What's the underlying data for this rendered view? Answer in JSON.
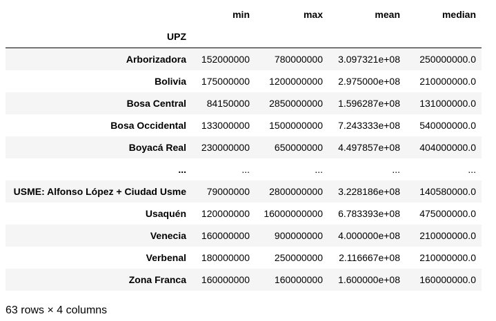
{
  "table": {
    "columns": [
      "min",
      "max",
      "mean",
      "median"
    ],
    "index_name": "UPZ",
    "rows": [
      {
        "name": "Arborizadora",
        "values": [
          "152000000",
          "780000000",
          "3.097321e+08",
          "250000000.0"
        ]
      },
      {
        "name": "Bolivia",
        "values": [
          "175000000",
          "1200000000",
          "2.975000e+08",
          "210000000.0"
        ]
      },
      {
        "name": "Bosa Central",
        "values": [
          "84150000",
          "2850000000",
          "1.596287e+08",
          "131000000.0"
        ]
      },
      {
        "name": "Bosa Occidental",
        "values": [
          "133000000",
          "1500000000",
          "7.243333e+08",
          "540000000.0"
        ]
      },
      {
        "name": "Boyacá Real",
        "values": [
          "230000000",
          "650000000",
          "4.497857e+08",
          "404000000.0"
        ]
      },
      {
        "name": "...",
        "values": [
          "...",
          "...",
          "...",
          "..."
        ]
      },
      {
        "name": "USME: Alfonso López + Ciudad Usme",
        "values": [
          "79000000",
          "2800000000",
          "3.228186e+08",
          "140580000.0"
        ]
      },
      {
        "name": "Usaquén",
        "values": [
          "120000000",
          "16000000000",
          "6.783393e+08",
          "475000000.0"
        ]
      },
      {
        "name": "Venecia",
        "values": [
          "160000000",
          "900000000",
          "4.000000e+08",
          "210000000.0"
        ]
      },
      {
        "name": "Verbenal",
        "values": [
          "180000000",
          "250000000",
          "2.116667e+08",
          "210000000.0"
        ]
      },
      {
        "name": "Zona Franca",
        "values": [
          "160000000",
          "160000000",
          "1.600000e+08",
          "160000000.0"
        ]
      }
    ]
  },
  "footer": {
    "shape_text": "63 rows × 4 columns"
  }
}
